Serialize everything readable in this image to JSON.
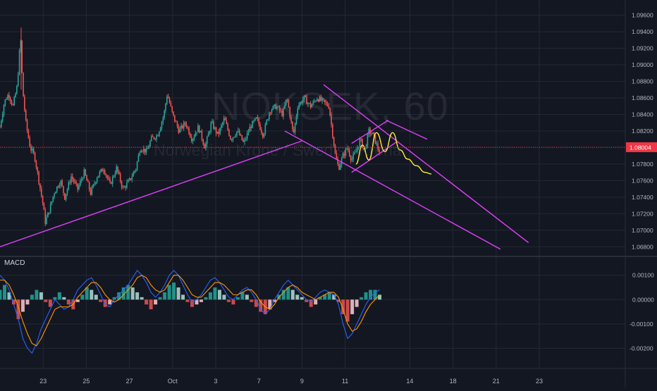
{
  "chart_data": {
    "type": "candlestick",
    "symbol": "NOKSEK, 60",
    "description": "Norwegian Krone / Swedish Krona",
    "price_axis_ticks": [
      "1.09600",
      "1.09400",
      "1.09200",
      "1.09000",
      "1.08800",
      "1.08600",
      "1.08400",
      "1.08200",
      "1.08000",
      "1.07800",
      "1.07600",
      "1.07400",
      "1.07200",
      "1.07000",
      "1.06800"
    ],
    "price_range": [
      1.067,
      1.0975
    ],
    "last_price": "1.08004",
    "x_axis_labels": [
      {
        "label": "23",
        "day": 23
      },
      {
        "label": "25",
        "day": 25
      },
      {
        "label": "27",
        "day": 27
      },
      {
        "label": "Oct",
        "day": 29
      },
      {
        "label": "3",
        "day": 31
      },
      {
        "label": "7",
        "day": 33
      },
      {
        "label": "9",
        "day": 35
      },
      {
        "label": "11",
        "day": 37
      },
      {
        "label": "14",
        "day": 40
      },
      {
        "label": "18",
        "day": 42
      },
      {
        "label": "21",
        "day": 44
      },
      {
        "label": "23",
        "day": 46
      }
    ],
    "price_path": [
      [
        21.0,
        1.0825
      ],
      [
        21.2,
        1.0855
      ],
      [
        21.4,
        1.0865
      ],
      [
        21.6,
        1.085
      ],
      [
        21.8,
        1.0875
      ],
      [
        21.95,
        1.0935
      ],
      [
        22.05,
        1.087
      ],
      [
        22.2,
        1.083
      ],
      [
        22.4,
        1.08
      ],
      [
        22.6,
        1.079
      ],
      [
        22.8,
        1.076
      ],
      [
        23.0,
        1.073
      ],
      [
        23.1,
        1.071
      ],
      [
        23.3,
        1.0725
      ],
      [
        23.5,
        1.0745
      ],
      [
        23.8,
        1.076
      ],
      [
        24.0,
        1.074
      ],
      [
        24.3,
        1.0765
      ],
      [
        24.6,
        1.075
      ],
      [
        24.9,
        1.077
      ],
      [
        25.2,
        1.0745
      ],
      [
        25.5,
        1.0765
      ],
      [
        25.8,
        1.0775
      ],
      [
        26.1,
        1.0755
      ],
      [
        26.4,
        1.0775
      ],
      [
        26.7,
        1.075
      ],
      [
        27.0,
        1.076
      ],
      [
        27.3,
        1.0775
      ],
      [
        27.5,
        1.08
      ],
      [
        27.8,
        1.0795
      ],
      [
        28.0,
        1.081
      ],
      [
        28.3,
        1.0815
      ],
      [
        28.6,
        1.084
      ],
      [
        28.75,
        1.0865
      ],
      [
        29.0,
        1.084
      ],
      [
        29.3,
        1.082
      ],
      [
        29.6,
        1.083
      ],
      [
        29.9,
        1.081
      ],
      [
        30.2,
        1.0825
      ],
      [
        30.5,
        1.08
      ],
      [
        30.8,
        1.083
      ],
      [
        31.1,
        1.0815
      ],
      [
        31.4,
        1.0835
      ],
      [
        31.7,
        1.081
      ],
      [
        32.0,
        1.082
      ],
      [
        32.3,
        1.0805
      ],
      [
        32.6,
        1.0825
      ],
      [
        32.9,
        1.0835
      ],
      [
        33.2,
        1.0815
      ],
      [
        33.5,
        1.0845
      ],
      [
        33.8,
        1.085
      ],
      [
        34.1,
        1.084
      ],
      [
        34.3,
        1.086
      ],
      [
        34.6,
        1.0815
      ],
      [
        34.8,
        1.085
      ],
      [
        35.1,
        1.086
      ],
      [
        35.4,
        1.085
      ],
      [
        35.7,
        1.086
      ],
      [
        36.0,
        1.0855
      ],
      [
        36.25,
        1.085
      ],
      [
        36.4,
        1.082
      ],
      [
        36.55,
        1.079
      ],
      [
        36.7,
        1.0775
      ],
      [
        36.9,
        1.079
      ],
      [
        37.1,
        1.08
      ],
      [
        37.3,
        1.0785
      ],
      [
        37.5,
        1.0795
      ],
      [
        37.7,
        1.081
      ],
      [
        37.9,
        1.0795
      ],
      [
        38.1,
        1.082
      ],
      [
        38.3,
        1.0815
      ],
      [
        38.5,
        1.08
      ],
      [
        38.6,
        1.0795
      ]
    ],
    "projection_path": [
      [
        37.5,
        1.078
      ],
      [
        37.8,
        1.0803
      ],
      [
        38.1,
        1.0785
      ],
      [
        38.45,
        1.0818
      ],
      [
        38.85,
        1.0795
      ],
      [
        39.2,
        1.0818
      ],
      [
        39.55,
        1.0797
      ],
      [
        39.9,
        1.0786
      ],
      [
        40.3,
        1.0778
      ],
      [
        40.7,
        1.077
      ],
      [
        41.0,
        1.0768
      ]
    ],
    "trendlines": [
      {
        "name": "ascending-support",
        "points": [
          [
            21.0,
            1.068
          ],
          [
            35.0,
            1.0808
          ]
        ],
        "color": "#e040fb"
      },
      {
        "name": "descending-channel-upper",
        "points": [
          [
            36.0,
            1.0876
          ],
          [
            45.5,
            1.0685
          ]
        ],
        "color": "#e040fb"
      },
      {
        "name": "descending-channel-lower",
        "points": [
          [
            34.2,
            1.082
          ],
          [
            44.2,
            1.0677
          ]
        ],
        "color": "#e040fb"
      },
      {
        "name": "rising-channel-upper",
        "points": [
          [
            37.3,
            1.0805
          ],
          [
            39.0,
            1.0833
          ]
        ],
        "color": "#e040fb"
      },
      {
        "name": "rising-channel-lower",
        "points": [
          [
            37.3,
            1.077
          ],
          [
            39.4,
            1.0807
          ]
        ],
        "color": "#e040fb"
      },
      {
        "name": "flag-cross-line",
        "points": [
          [
            38.9,
            1.0833
          ],
          [
            40.8,
            1.081
          ]
        ],
        "color": "#e040fb"
      }
    ],
    "macd": {
      "label": "MACD",
      "axis_ticks": [
        "0.00100",
        "0.00000",
        "-0.00100",
        "-0.00200"
      ],
      "range": [
        -0.0028,
        0.0016
      ],
      "histogram": [
        0.0004,
        0.0006,
        0.0003,
        -0.0002,
        -0.0008,
        -0.0005,
        -0.0002,
        0.0002,
        0.0004,
        0.0003,
        -0.0001,
        -0.0003,
        0.0001,
        0.0003,
        0.0001,
        -0.0002,
        -0.0004,
        -0.0001,
        0.0002,
        0.0005,
        0.0004,
        0.0002,
        -0.0001,
        -0.0003,
        -0.0002,
        0.0001,
        0.0003,
        0.0005,
        0.0006,
        0.0005,
        0.0003,
        0.0001,
        -0.0002,
        -0.0004,
        -0.0002,
        0.0001,
        0.0003,
        0.0006,
        0.0007,
        0.0005,
        0.0002,
        -0.0001,
        -0.0003,
        -0.0002,
        -0.0001,
        0.0001,
        0.0003,
        0.0005,
        0.0004,
        0.0002,
        -0.0001,
        -0.0002,
        0.0001,
        0.0003,
        0.0002,
        -0.0001,
        -0.0003,
        -0.0005,
        -0.0006,
        -0.0004,
        -0.0001,
        0.0002,
        0.0004,
        0.0005,
        0.0004,
        0.0002,
        0.0001,
        -0.0001,
        -0.0003,
        -0.0002,
        0.0001,
        0.0002,
        0.0003,
        0.0002,
        -0.0001,
        -0.0006,
        -0.0009,
        -0.0006,
        -0.0003,
        0.0001,
        0.0003,
        0.0004,
        0.0004,
        0.0002
      ],
      "macd_line": [
        0.001,
        0.0008,
        0.0004,
        -0.0002,
        -0.0008,
        -0.0016,
        -0.002,
        -0.0022,
        -0.0018,
        -0.0012,
        -0.0008,
        -0.0004,
        0.0,
        -0.0002,
        -0.0004,
        -0.0003,
        0.0,
        0.0004,
        0.0006,
        0.0008,
        0.0009,
        0.0006,
        0.0002,
        -0.0002,
        -0.0003,
        0.0,
        0.0002,
        0.0004,
        0.0006,
        0.0009,
        0.0012,
        0.001,
        0.0007,
        0.0003,
        0.0001,
        0.0003,
        0.0006,
        0.001,
        0.0012,
        0.001,
        0.0006,
        0.0002,
        -0.0001,
        0.0,
        0.0002,
        0.0005,
        0.0008,
        0.0009,
        0.0007,
        0.0004,
        0.0001,
        0.0,
        0.0002,
        0.0004,
        0.0005,
        0.0003,
        0.0,
        -0.0004,
        -0.0006,
        -0.0004,
        0.0,
        0.0003,
        0.0006,
        0.0008,
        0.0006,
        0.0004,
        0.0002,
        0.0,
        -0.0001,
        0.0001,
        0.0003,
        0.0004,
        0.0003,
        0.0002,
        -0.0002,
        -0.001,
        -0.0016,
        -0.0014,
        -0.001,
        -0.0006,
        -0.0002,
        0.0001,
        0.0003,
        0.0004
      ],
      "signal_line": [
        0.0008,
        0.0008,
        0.0006,
        0.0002,
        -0.0003,
        -0.0009,
        -0.0014,
        -0.0018,
        -0.0019,
        -0.0016,
        -0.0012,
        -0.0008,
        -0.0004,
        -0.0003,
        -0.0003,
        -0.0003,
        -0.0002,
        0.0001,
        0.0003,
        0.0005,
        0.0007,
        0.0007,
        0.0005,
        0.0002,
        0.0,
        -0.0001,
        0.0,
        0.0002,
        0.0004,
        0.0006,
        0.0009,
        0.001,
        0.0009,
        0.0006,
        0.0004,
        0.0003,
        0.0004,
        0.0007,
        0.001,
        0.001,
        0.0008,
        0.0005,
        0.0002,
        0.0001,
        0.0001,
        0.0003,
        0.0005,
        0.0007,
        0.0007,
        0.0006,
        0.0004,
        0.0002,
        0.0002,
        0.0003,
        0.0004,
        0.0004,
        0.0002,
        -0.0001,
        -0.0003,
        -0.0004,
        -0.0002,
        0.0001,
        0.0003,
        0.0005,
        0.0006,
        0.0005,
        0.0003,
        0.0002,
        0.0001,
        0.0,
        0.0001,
        0.0002,
        0.0003,
        0.0003,
        0.0001,
        -0.0004,
        -0.001,
        -0.0013,
        -0.0012,
        -0.0009,
        -0.0005,
        -0.0002,
        0.0,
        0.0002
      ]
    }
  },
  "colors": {
    "background": "#131722",
    "grid": "#242833",
    "up": "#26a69a",
    "down": "#ef5350",
    "trendline": "#e040fb",
    "projection": "#ffeb3b",
    "macd_line": "#2962ff",
    "signal_line": "#ff9800",
    "hist_up": "#b2dfdb",
    "hist_down": "#ffcdd2",
    "price_label_bg": "#f23645",
    "axis_text": "#b2b5be"
  }
}
